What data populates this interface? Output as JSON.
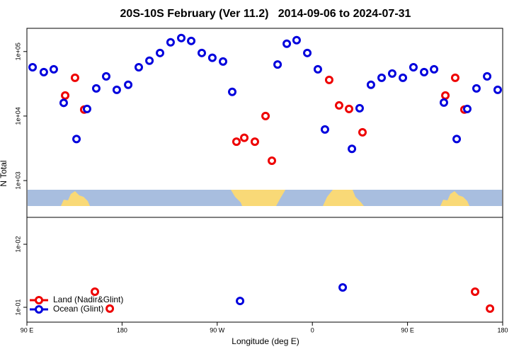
{
  "chart_data": [
    {
      "type": "scatter",
      "title": "20S-10S February (Ver 11.2)   2014-09-06 to 2024-07-31",
      "ylabel": "N Total",
      "log_y": true,
      "xlim": [
        90,
        540
      ],
      "ylim": [
        269,
        229000
      ],
      "yticks": [
        {
          "value": 1000,
          "label": "1e+03"
        },
        {
          "value": 10000,
          "label": "1e+04"
        },
        {
          "value": 100000,
          "label": "1e+05"
        }
      ],
      "series": [
        {
          "color": "#ee0000",
          "x": [
            126.2,
            135.5,
            144.2,
            288.2,
            295.6,
            305.6,
            315.7,
            321.7,
            375.9,
            385.3,
            394.7,
            407.4,
            485.8,
            495.1,
            503.8
          ],
          "values": [
            20800,
            39200,
            12600,
            4000,
            4600,
            4000,
            10000,
            2030,
            36300,
            14600,
            12900,
            5600,
            20800,
            39200,
            12600
          ]
        },
        {
          "color": "#0000dd",
          "x": [
            95.4,
            106,
            115.4,
            124.8,
            136.9,
            146.9,
            155.6,
            165,
            175,
            185.8,
            195.8,
            205.9,
            215.9,
            225.9,
            236,
            245.4,
            255.4,
            265.4,
            275.5,
            284.2,
            327.1,
            335.8,
            345.1,
            355.2,
            365.2,
            371.9,
            397.4,
            404.7,
            415.4,
            425.5,
            435.5,
            445.6,
            455.6,
            465.7,
            475.1,
            484.4,
            496.5,
            506.5,
            515.2,
            525.3,
            535.3
          ],
          "values": [
            57000,
            48000,
            53000,
            16000,
            4400,
            12900,
            26800,
            41200,
            25500,
            30500,
            57000,
            72000,
            95000,
            139000,
            162000,
            146000,
            95000,
            80000,
            70000,
            23700,
            63000,
            132000,
            150000,
            95000,
            53000,
            6200,
            3100,
            13200,
            30500,
            39200,
            45600,
            39200,
            57000,
            48000,
            53000,
            16200,
            4400,
            12900,
            26800,
            41200,
            25500
          ]
        }
      ]
    },
    {
      "type": "scatter",
      "xlabel": "Longitude (deg E)",
      "log_y": true,
      "xlim": [
        90,
        540
      ],
      "xticks": [
        {
          "value": 90,
          "label": "90 E"
        },
        {
          "value": 180,
          "label": "180"
        },
        {
          "value": 270,
          "label": "90 W"
        },
        {
          "value": 360,
          "label": "0"
        },
        {
          "value": 450,
          "label": "90 E"
        },
        {
          "value": 540,
          "label": "180"
        }
      ],
      "ylim": [
        0.172,
        0.00374
      ],
      "yticks": [
        {
          "value": 0.01,
          "label": "1e-02"
        },
        {
          "value": 0.1,
          "label": "1e-01"
        }
      ],
      "legend": "lower left",
      "series": [
        {
          "name": "Land (Nadir&Glint)",
          "color": "#ee0000",
          "x": [
            154.3,
            168.4,
            513.9,
            528
          ],
          "values": [
            0.0566,
            0.105,
            0.0566,
            0.105
          ]
        },
        {
          "name": "Ocean (Glint)",
          "color": "#0000dd",
          "x": [
            291.6,
            388.7
          ],
          "values": [
            0.0793,
            0.0484
          ]
        }
      ]
    }
  ]
}
